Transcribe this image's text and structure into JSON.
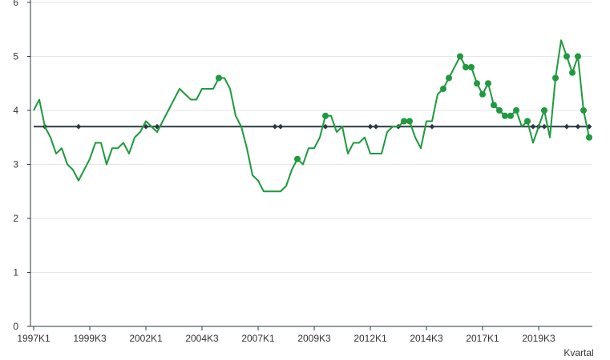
{
  "chart_data": {
    "type": "line",
    "xlabel": "Kvartal",
    "ylabel": "",
    "ylim": [
      0,
      6
    ],
    "y_ticks": [
      0,
      1,
      2,
      3,
      4,
      5,
      6
    ],
    "x_tick_labels": [
      "1997K1",
      "1999K3",
      "2002K1",
      "2004K3",
      "2007K1",
      "2009K3",
      "2012K1",
      "2014K3",
      "2017K1",
      "2019K3"
    ],
    "grid": "horizontal",
    "colors": {
      "series": "#1f9a3e",
      "reference": "#2b3a42",
      "grid": "#e6e6e6",
      "axis": "#2b3a42"
    },
    "series": [
      {
        "values": [
          4.0,
          4.2,
          3.7,
          3.5,
          3.2,
          3.3,
          3.0,
          2.9,
          2.7,
          2.9,
          3.1,
          3.4,
          3.4,
          3.0,
          3.3,
          3.3,
          3.4,
          3.2,
          3.5,
          3.6,
          3.8,
          3.7,
          3.6,
          3.8,
          4.0,
          4.2,
          4.4,
          4.3,
          4.2,
          4.2,
          4.4,
          4.4,
          4.4,
          4.6,
          4.6,
          4.4,
          3.9,
          3.7,
          3.3,
          2.8,
          2.7,
          2.5,
          2.5,
          2.5,
          2.5,
          2.6,
          2.9,
          3.1,
          3.0,
          3.3,
          3.3,
          3.5,
          3.9,
          3.9,
          3.6,
          3.7,
          3.2,
          3.4,
          3.4,
          3.5,
          3.2,
          3.2,
          3.2,
          3.6,
          3.7,
          3.7,
          3.8,
          3.8,
          3.5,
          3.3,
          3.8,
          3.8,
          4.3,
          4.4,
          4.6,
          4.8,
          5.0,
          4.8,
          4.8,
          4.5,
          4.3,
          4.5,
          4.1,
          4.0,
          3.9,
          3.9,
          4.0,
          3.7,
          3.8,
          3.4,
          3.7,
          4.0,
          3.5,
          4.6,
          5.3,
          5.0,
          4.7,
          5.0,
          4.0,
          3.5
        ],
        "markers_at": [
          33,
          47,
          52,
          66,
          67,
          73,
          74,
          76,
          77,
          78,
          79,
          80,
          81,
          82,
          83,
          84,
          85,
          86,
          88,
          91,
          93,
          95,
          96,
          97,
          98,
          99
        ]
      },
      {
        "values": [
          3.7,
          3.7,
          3.7,
          3.7,
          3.7,
          3.7,
          3.7,
          3.7,
          3.7,
          3.7,
          3.7,
          3.7,
          3.7,
          3.7,
          3.7,
          3.7,
          3.7,
          3.7,
          3.7,
          3.7,
          3.7,
          3.7,
          3.7,
          3.7,
          3.7,
          3.7,
          3.7,
          3.7,
          3.7,
          3.7,
          3.7,
          3.7,
          3.7,
          3.7,
          3.7,
          3.7,
          3.7,
          3.7,
          3.7,
          3.7,
          3.7,
          3.7,
          3.7,
          3.7,
          3.7,
          3.7,
          3.7,
          3.7,
          3.7,
          3.7,
          3.7,
          3.7,
          3.7,
          3.7,
          3.7,
          3.7,
          3.7,
          3.7,
          3.7,
          3.7,
          3.7,
          3.7,
          3.7,
          3.7,
          3.7,
          3.7,
          3.7,
          3.7,
          3.7,
          3.7,
          3.7,
          3.7,
          3.7,
          3.7,
          3.7,
          3.7,
          3.7,
          3.7,
          3.7,
          3.7,
          3.7,
          3.7,
          3.7,
          3.7,
          3.7,
          3.7,
          3.7,
          3.7,
          3.7,
          3.7,
          3.7,
          3.7,
          3.7,
          3.7,
          3.7,
          3.7,
          3.7,
          3.7,
          3.7,
          3.7
        ],
        "markers_at": [
          2,
          8,
          20,
          22,
          43,
          44,
          52,
          60,
          61,
          65,
          71,
          89,
          90,
          91,
          95,
          97,
          99
        ]
      }
    ]
  }
}
